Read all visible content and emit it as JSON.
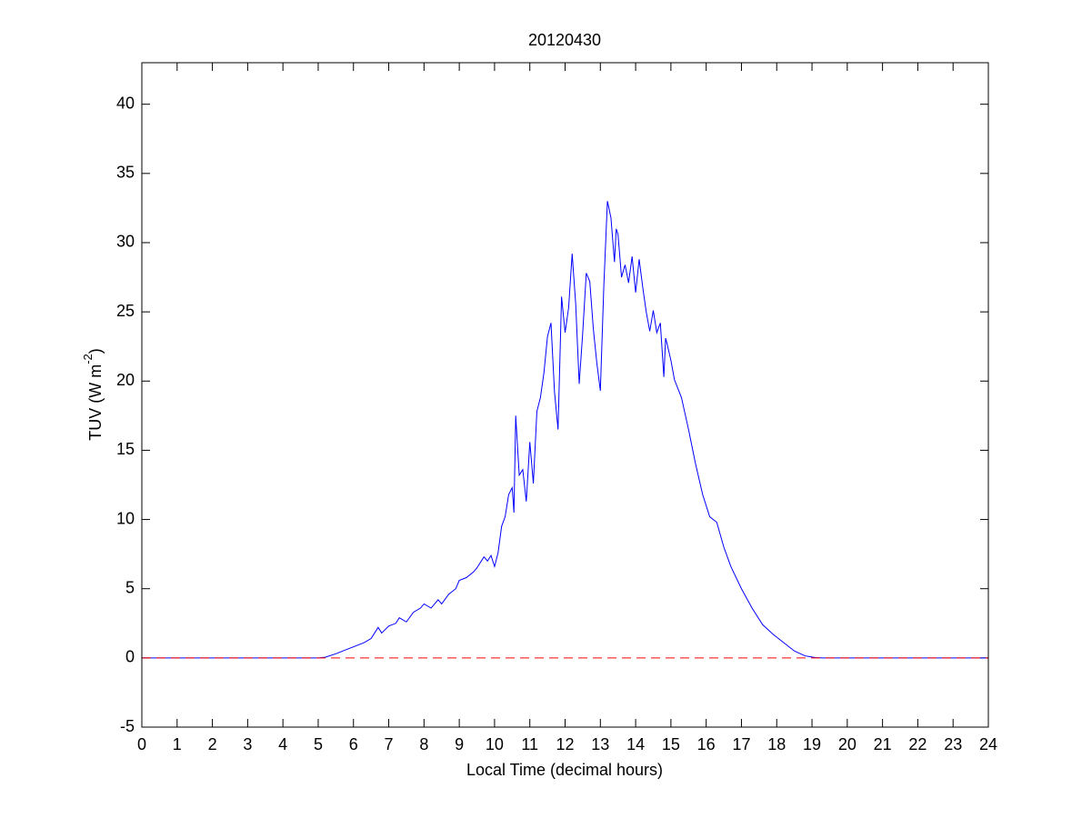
{
  "chart_data": {
    "type": "line",
    "title": "20120430",
    "xlabel": "Local Time (decimal hours)",
    "ylabel": [
      "TUV (W m",
      "-2",
      ")"
    ],
    "xlim": [
      0,
      24
    ],
    "xticks": [
      0,
      1,
      2,
      3,
      4,
      5,
      6,
      7,
      8,
      9,
      10,
      11,
      12,
      13,
      14,
      15,
      16,
      17,
      18,
      19,
      20,
      21,
      22,
      23,
      24
    ],
    "ylim": [
      -5,
      43
    ],
    "yticks": [
      -5,
      0,
      5,
      10,
      15,
      20,
      25,
      30,
      35,
      40
    ],
    "grid": false,
    "series": [
      {
        "color": "#0000ff",
        "style": "solid",
        "x": [
          0,
          5,
          5.2,
          5.5,
          5.8,
          6.0,
          6.3,
          6.5,
          6.6,
          6.7,
          6.8,
          7.0,
          7.2,
          7.3,
          7.5,
          7.7,
          7.9,
          8.0,
          8.2,
          8.4,
          8.5,
          8.7,
          8.9,
          9.0,
          9.2,
          9.4,
          9.5,
          9.6,
          9.7,
          9.8,
          9.9,
          10.0,
          10.1,
          10.2,
          10.3,
          10.4,
          10.5,
          10.55,
          10.6,
          10.7,
          10.8,
          10.9,
          11.0,
          11.1,
          11.2,
          11.3,
          11.4,
          11.5,
          11.6,
          11.7,
          11.8,
          11.9,
          12.0,
          12.1,
          12.2,
          12.3,
          12.4,
          12.5,
          12.6,
          12.7,
          12.8,
          12.9,
          13.0,
          13.1,
          13.2,
          13.3,
          13.4,
          13.45,
          13.5,
          13.6,
          13.7,
          13.8,
          13.9,
          14.0,
          14.1,
          14.2,
          14.3,
          14.4,
          14.5,
          14.6,
          14.7,
          14.8,
          14.85,
          14.9,
          15.0,
          15.1,
          15.3,
          15.5,
          15.7,
          15.9,
          16.1,
          16.3,
          16.5,
          16.7,
          17.0,
          17.3,
          17.6,
          17.9,
          18.2,
          18.5,
          18.8,
          19.1,
          19.3,
          24
        ],
        "values": [
          0,
          0,
          0.05,
          0.3,
          0.6,
          0.8,
          1.1,
          1.4,
          1.8,
          2.2,
          1.8,
          2.3,
          2.5,
          2.9,
          2.6,
          3.3,
          3.6,
          3.9,
          3.6,
          4.2,
          3.9,
          4.6,
          5.0,
          5.6,
          5.8,
          6.2,
          6.5,
          6.9,
          7.3,
          7.0,
          7.4,
          6.6,
          7.6,
          9.5,
          10.2,
          11.8,
          12.3,
          10.5,
          17.5,
          13.2,
          13.6,
          11.3,
          15.6,
          12.6,
          17.8,
          18.8,
          20.6,
          23.2,
          24.2,
          19.2,
          16.5,
          26.1,
          23.5,
          25.3,
          29.2,
          25.6,
          19.8,
          23.5,
          27.8,
          27.2,
          23.8,
          21.3,
          19.3,
          27.0,
          33.0,
          31.8,
          28.6,
          31.0,
          30.6,
          27.5,
          28.4,
          27.1,
          29.0,
          26.4,
          28.8,
          26.8,
          25.0,
          23.6,
          25.1,
          23.5,
          24.2,
          20.3,
          23.1,
          22.6,
          21.5,
          20.1,
          18.8,
          16.5,
          14.0,
          11.8,
          10.2,
          9.8,
          8.0,
          6.6,
          5.0,
          3.6,
          2.4,
          1.7,
          1.1,
          0.5,
          0.15,
          0.02,
          0,
          0
        ]
      },
      {
        "color": "#ff0000",
        "style": "dashed",
        "x": [
          0,
          24
        ],
        "values": [
          0,
          0
        ]
      }
    ]
  }
}
